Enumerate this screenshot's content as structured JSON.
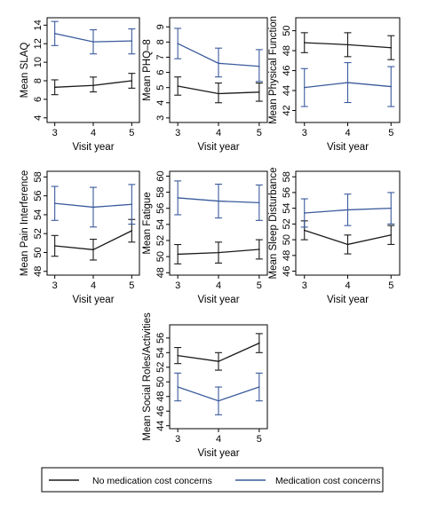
{
  "colors": {
    "no_concern": "#1a1a1a",
    "concern": "#3a5a9c",
    "frame": "#000000",
    "background": "#ffffff"
  },
  "legend": {
    "placement": "bottom",
    "items": [
      {
        "label": "No medication cost concerns",
        "color": "#1a1a1a",
        "series": "no_concern"
      },
      {
        "label": "Medication cost concerns",
        "color": "#3a5a9c",
        "series": "concern"
      }
    ]
  },
  "chart_data": [
    {
      "type": "line",
      "ylabel": "Mean SLAQ",
      "xlabel": "Visit year",
      "x": [
        3,
        4,
        5
      ],
      "xlim": [
        2.8,
        5.2
      ],
      "ylim": [
        3.5,
        14.8
      ],
      "yticks": [
        4,
        6,
        8,
        10,
        12,
        14
      ],
      "grid": false,
      "series": [
        {
          "key": "no_concern",
          "name": "No medication cost concerns",
          "values": [
            7.3,
            7.5,
            8.0
          ],
          "lower": [
            6.5,
            6.8,
            7.2
          ],
          "upper": [
            8.1,
            8.4,
            8.8
          ]
        },
        {
          "key": "concern",
          "name": "Medication cost concerns",
          "values": [
            13.1,
            12.2,
            12.3
          ],
          "lower": [
            11.8,
            10.9,
            10.9
          ],
          "upper": [
            14.4,
            13.5,
            13.6
          ]
        }
      ]
    },
    {
      "type": "line",
      "ylabel": "Mean PHQ–8",
      "xlabel": "Visit year",
      "x": [
        3,
        4,
        5
      ],
      "xlim": [
        2.8,
        5.2
      ],
      "ylim": [
        2.7,
        9.6
      ],
      "yticks": [
        3,
        4,
        5,
        6,
        7,
        8,
        9
      ],
      "grid": false,
      "series": [
        {
          "key": "no_concern",
          "name": "No medication cost concerns",
          "values": [
            5.1,
            4.6,
            4.7
          ],
          "lower": [
            4.5,
            4.0,
            4.1
          ],
          "upper": [
            5.7,
            5.3,
            5.3
          ]
        },
        {
          "key": "concern",
          "name": "Medication cost concerns",
          "values": [
            7.9,
            6.6,
            6.4
          ],
          "lower": [
            6.9,
            5.7,
            5.4
          ],
          "upper": [
            8.9,
            7.6,
            7.5
          ]
        }
      ]
    },
    {
      "type": "line",
      "ylabel": "Mean Physical Function",
      "xlabel": "Visit year",
      "x": [
        3,
        4,
        5
      ],
      "xlim": [
        2.8,
        5.2
      ],
      "ylim": [
        40.8,
        51.3
      ],
      "yticks": [
        42,
        44,
        46,
        48,
        50
      ],
      "grid": false,
      "series": [
        {
          "key": "no_concern",
          "name": "No medication cost concerns",
          "values": [
            48.8,
            48.6,
            48.3
          ],
          "lower": [
            47.8,
            47.4,
            47.1
          ],
          "upper": [
            49.8,
            49.8,
            49.5
          ]
        },
        {
          "key": "concern",
          "name": "Medication cost concerns",
          "values": [
            44.3,
            44.8,
            44.4
          ],
          "lower": [
            42.4,
            42.8,
            42.4
          ],
          "upper": [
            46.2,
            46.8,
            46.4
          ]
        }
      ]
    },
    {
      "type": "line",
      "ylabel": "Mean Pain Interference",
      "xlabel": "Visit year",
      "x": [
        3,
        4,
        5
      ],
      "xlim": [
        2.8,
        5.2
      ],
      "ylim": [
        47.6,
        58.6
      ],
      "yticks": [
        48,
        50,
        52,
        54,
        56,
        58
      ],
      "grid": false,
      "series": [
        {
          "key": "no_concern",
          "name": "No medication cost concerns",
          "values": [
            50.7,
            50.3,
            52.3
          ],
          "lower": [
            49.6,
            49.2,
            51.1
          ],
          "upper": [
            51.8,
            51.4,
            53.5
          ]
        },
        {
          "key": "concern",
          "name": "Medication cost concerns",
          "values": [
            55.2,
            54.8,
            55.1
          ],
          "lower": [
            53.4,
            52.7,
            53.0
          ],
          "upper": [
            57.0,
            56.9,
            57.2
          ]
        }
      ]
    },
    {
      "type": "line",
      "ylabel": "Mean Fatigue",
      "xlabel": "Visit year",
      "x": [
        3,
        4,
        5
      ],
      "xlim": [
        2.8,
        5.2
      ],
      "ylim": [
        47.7,
        60.6
      ],
      "yticks": [
        48,
        50,
        52,
        54,
        56,
        58,
        60
      ],
      "grid": false,
      "series": [
        {
          "key": "no_concern",
          "name": "No medication cost concerns",
          "values": [
            50.3,
            50.5,
            50.9
          ],
          "lower": [
            49.1,
            49.2,
            49.7
          ],
          "upper": [
            51.5,
            51.8,
            52.1
          ]
        },
        {
          "key": "concern",
          "name": "Medication cost concerns",
          "values": [
            57.3,
            56.9,
            56.7
          ],
          "lower": [
            55.2,
            54.8,
            54.5
          ],
          "upper": [
            59.4,
            59.0,
            58.9
          ]
        }
      ]
    },
    {
      "type": "line",
      "ylabel": "Mean Sleep Disturbance",
      "xlabel": "Visit year",
      "x": [
        3,
        4,
        5
      ],
      "xlim": [
        2.8,
        5.2
      ],
      "ylim": [
        45.5,
        58.7
      ],
      "yticks": [
        46,
        48,
        50,
        52,
        54,
        56,
        58
      ],
      "grid": false,
      "series": [
        {
          "key": "no_concern",
          "name": "No medication cost concerns",
          "values": [
            51.2,
            49.4,
            50.6
          ],
          "lower": [
            50.0,
            48.2,
            49.4
          ],
          "upper": [
            52.4,
            50.6,
            51.8
          ]
        },
        {
          "key": "concern",
          "name": "Medication cost concerns",
          "values": [
            53.4,
            53.8,
            54.0
          ],
          "lower": [
            51.6,
            51.8,
            52.0
          ],
          "upper": [
            55.2,
            55.8,
            56.0
          ]
        }
      ]
    },
    {
      "type": "line",
      "ylabel": "Mean Social Roles/Activities",
      "xlabel": "Visit year",
      "x": [
        3,
        4,
        5
      ],
      "xlim": [
        2.8,
        5.2
      ],
      "ylim": [
        43.6,
        57.8
      ],
      "yticks": [
        44,
        46,
        48,
        50,
        52,
        54,
        56
      ],
      "grid": false,
      "series": [
        {
          "key": "no_concern",
          "name": "No medication cost concerns",
          "values": [
            53.6,
            52.8,
            55.3
          ],
          "lower": [
            52.5,
            51.6,
            54.0
          ],
          "upper": [
            54.7,
            54.0,
            56.6
          ]
        },
        {
          "key": "concern",
          "name": "Medication cost concerns",
          "values": [
            49.3,
            47.4,
            49.3
          ],
          "lower": [
            47.4,
            45.5,
            47.4
          ],
          "upper": [
            51.2,
            49.3,
            51.2
          ]
        }
      ]
    }
  ]
}
